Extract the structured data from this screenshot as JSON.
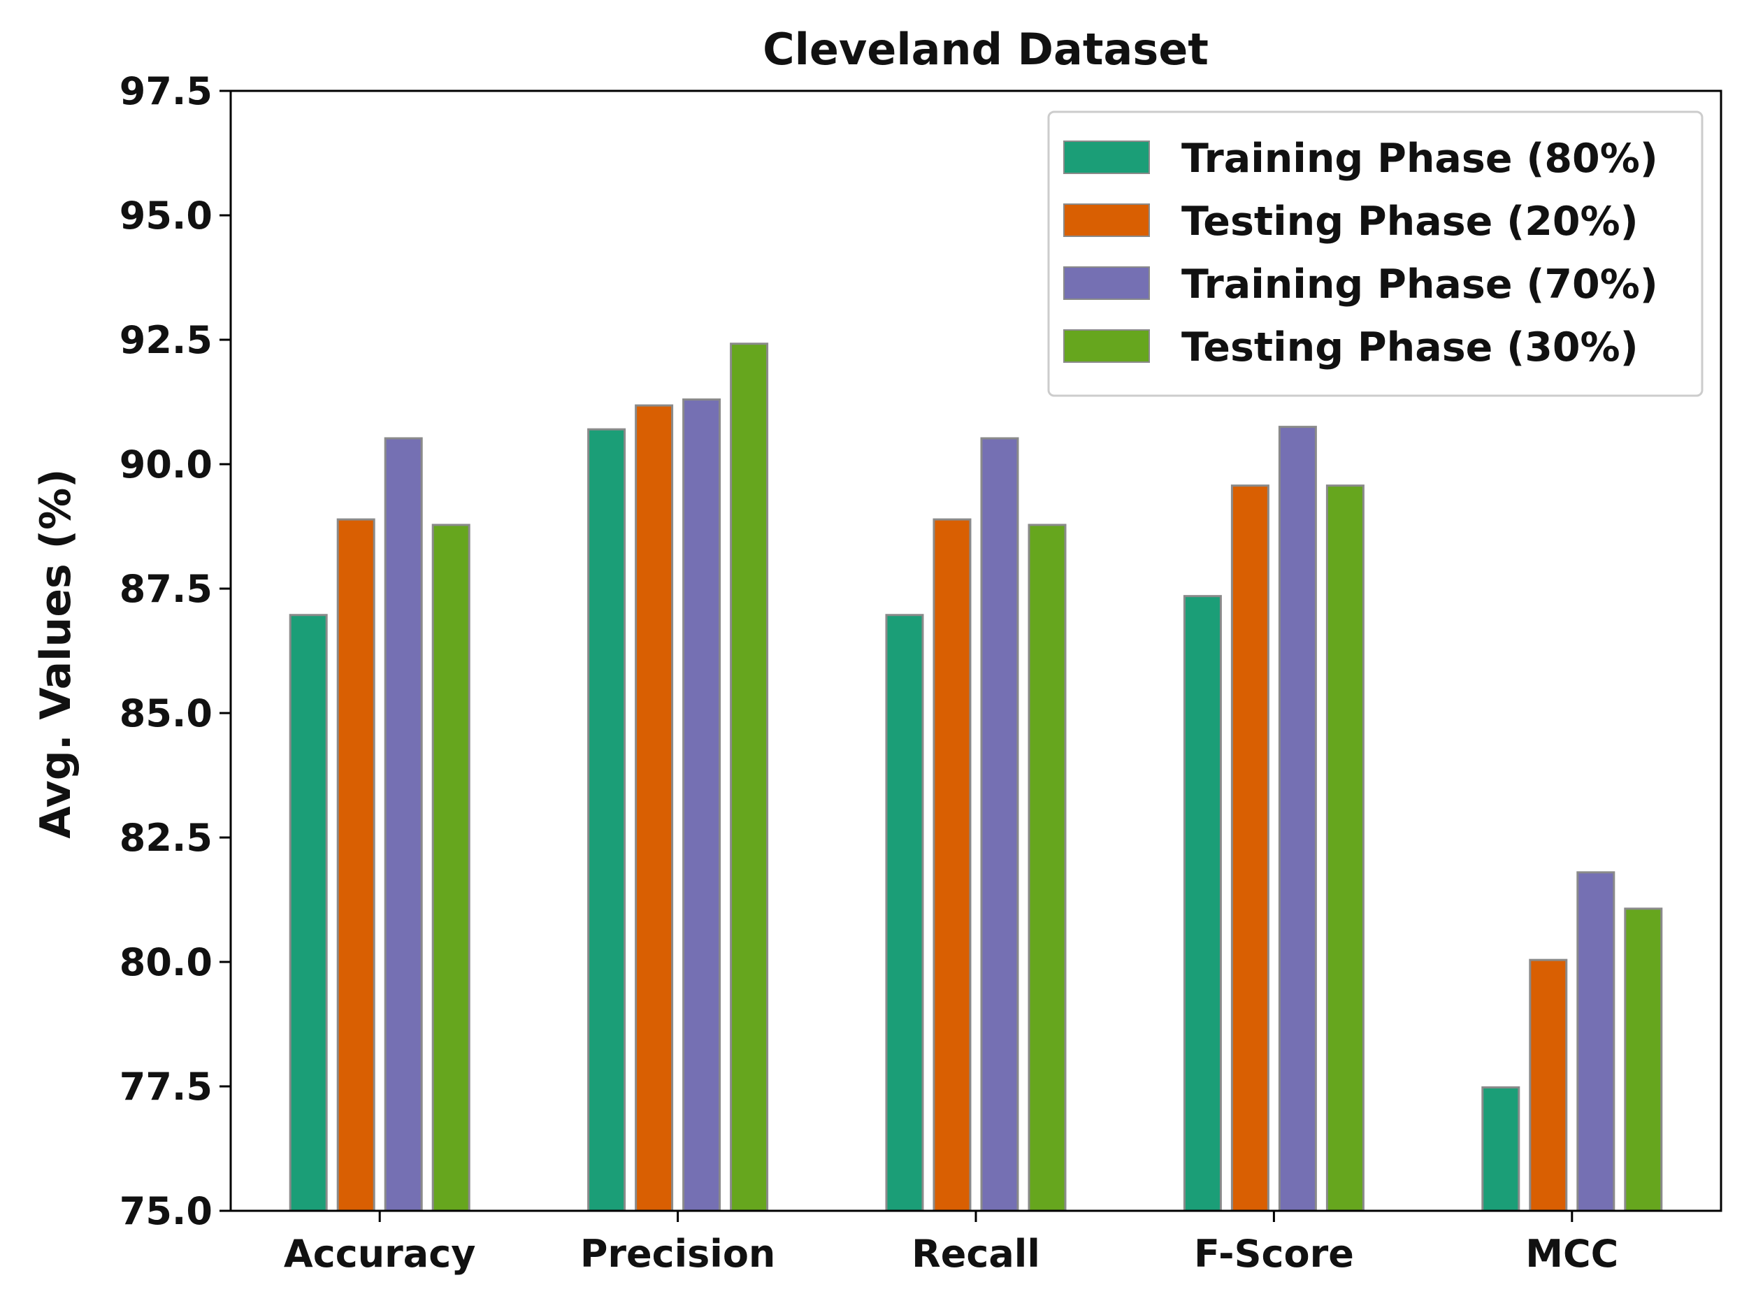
{
  "chart_data": {
    "type": "bar",
    "title": "Cleveland Dataset",
    "xlabel": "",
    "ylabel": "Avg. Values (%)",
    "ylim": [
      75.0,
      97.5
    ],
    "yticks": [
      "75.0",
      "77.5",
      "80.0",
      "82.5",
      "85.0",
      "87.5",
      "90.0",
      "92.5",
      "95.0",
      "97.5"
    ],
    "categories": [
      "Accuracy",
      "Precision",
      "Recall",
      "F-Score",
      "MCC"
    ],
    "grid": false,
    "legend_position": "top-right",
    "series": [
      {
        "name": "Training Phase (80%)",
        "color": "#1b9e77",
        "values": [
          86.97,
          90.7,
          86.97,
          87.35,
          77.48
        ]
      },
      {
        "name": "Testing Phase (20%)",
        "color": "#d95f02",
        "values": [
          88.89,
          91.18,
          88.89,
          89.57,
          80.04
        ]
      },
      {
        "name": "Training Phase (70%)",
        "color": "#7570b3",
        "values": [
          90.52,
          91.3,
          90.52,
          90.75,
          81.8
        ]
      },
      {
        "name": "Testing Phase (30%)",
        "color": "#66a61e",
        "values": [
          88.78,
          92.42,
          88.78,
          89.57,
          81.07
        ]
      }
    ]
  }
}
